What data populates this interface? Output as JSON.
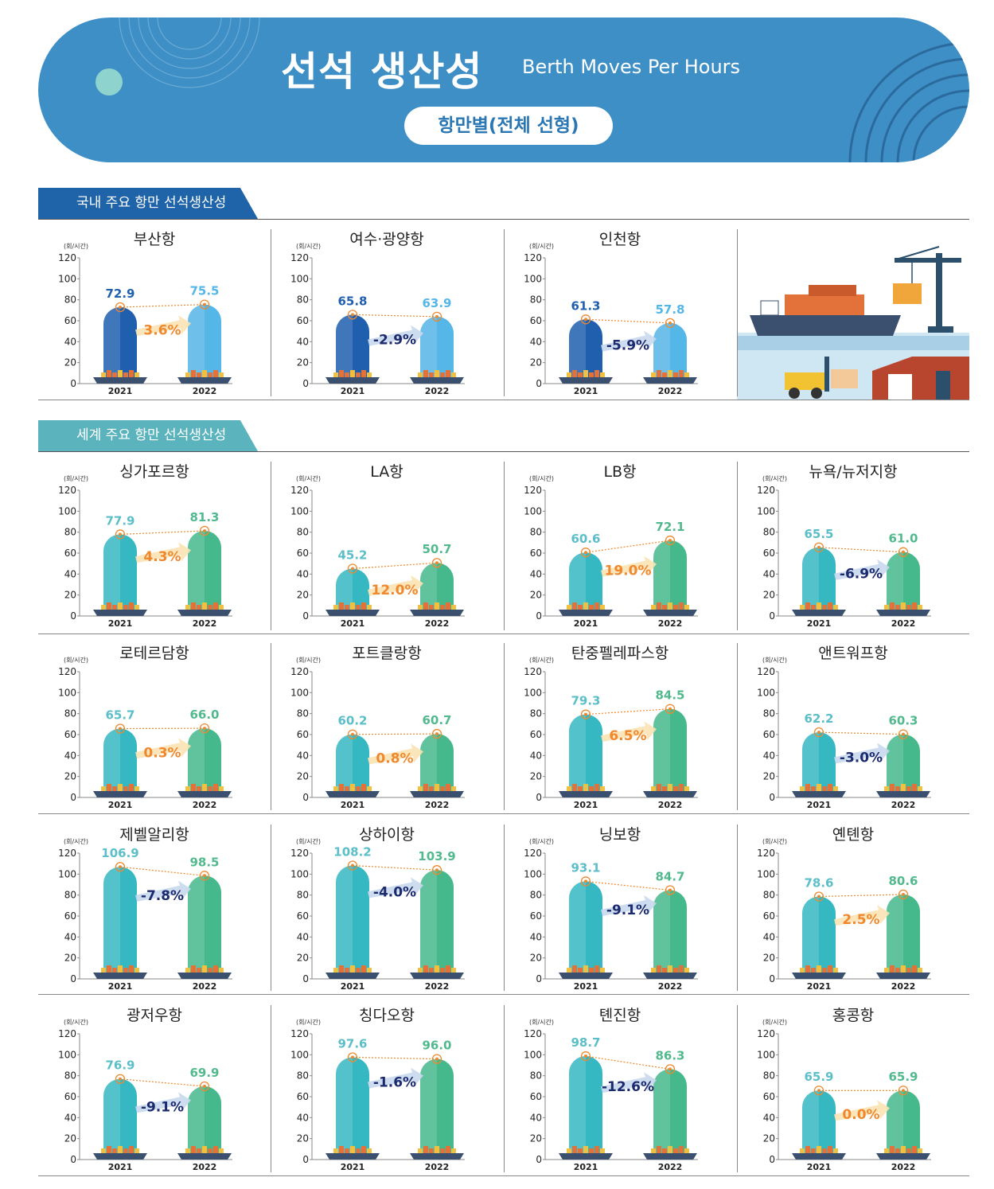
{
  "header": {
    "title": "선석 생산성",
    "subtitle": "Berth Moves Per Hours",
    "badge": "항만별(전체 선형)"
  },
  "sections": {
    "domestic": "국내 주요 항만 선석생산성",
    "global": "세계 주요 항만 선석생산성"
  },
  "colors": {
    "banner": "#3e8fc6",
    "domestic_tab": "#1f64a8",
    "global_tab": "#5bb4bd",
    "domestic_2021": "#1f5fae",
    "domestic_2022": "#55b6e8",
    "global_2021": "#36b8c2",
    "global_2022": "#46b98c",
    "increase": "#f0882d",
    "decrease": "#1c2a6e"
  },
  "unit": "(회/시간)",
  "chart_data": [
    {
      "type": "bar",
      "group": "domestic",
      "title": "부산항",
      "categories": [
        "2021",
        "2022"
      ],
      "values": [
        72.9,
        75.5
      ],
      "change": "3.6%",
      "ylim": [
        0,
        120
      ],
      "yticks": [
        0,
        20,
        40,
        60,
        80,
        100,
        120
      ]
    },
    {
      "type": "bar",
      "group": "domestic",
      "title": "여수·광양항",
      "categories": [
        "2021",
        "2022"
      ],
      "values": [
        65.8,
        63.9
      ],
      "change": "-2.9%",
      "ylim": [
        0,
        120
      ],
      "yticks": [
        0,
        20,
        40,
        60,
        80,
        100,
        120
      ]
    },
    {
      "type": "bar",
      "group": "domestic",
      "title": "인천항",
      "categories": [
        "2021",
        "2022"
      ],
      "values": [
        61.3,
        57.8
      ],
      "change": "-5.9%",
      "ylim": [
        0,
        120
      ],
      "yticks": [
        0,
        20,
        40,
        60,
        80,
        100,
        120
      ]
    },
    {
      "type": "bar",
      "group": "global",
      "title": "싱가포르항",
      "categories": [
        "2021",
        "2022"
      ],
      "values": [
        77.9,
        81.3
      ],
      "change": "4.3%",
      "ylim": [
        0,
        120
      ],
      "yticks": [
        0,
        20,
        40,
        60,
        80,
        100,
        120
      ]
    },
    {
      "type": "bar",
      "group": "global",
      "title": "LA항",
      "categories": [
        "2021",
        "2022"
      ],
      "values": [
        45.2,
        50.7
      ],
      "change": "12.0%",
      "ylim": [
        0,
        120
      ],
      "yticks": [
        0,
        20,
        40,
        60,
        80,
        100,
        120
      ]
    },
    {
      "type": "bar",
      "group": "global",
      "title": "LB항",
      "categories": [
        "2021",
        "2022"
      ],
      "values": [
        60.6,
        72.1
      ],
      "change": "19.0%",
      "ylim": [
        0,
        120
      ],
      "yticks": [
        0,
        20,
        40,
        60,
        80,
        100,
        120
      ]
    },
    {
      "type": "bar",
      "group": "global",
      "title": "뉴욕/뉴저지항",
      "categories": [
        "2021",
        "2022"
      ],
      "values": [
        65.5,
        61.0
      ],
      "change": "-6.9%",
      "ylim": [
        0,
        120
      ],
      "yticks": [
        0,
        20,
        40,
        60,
        80,
        100,
        120
      ]
    },
    {
      "type": "bar",
      "group": "global",
      "title": "로테르담항",
      "categories": [
        "2021",
        "2022"
      ],
      "values": [
        65.7,
        66.0
      ],
      "change": "0.3%",
      "ylim": [
        0,
        120
      ],
      "yticks": [
        0,
        20,
        40,
        60,
        80,
        100,
        120
      ]
    },
    {
      "type": "bar",
      "group": "global",
      "title": "포트클랑항",
      "categories": [
        "2021",
        "2022"
      ],
      "values": [
        60.2,
        60.7
      ],
      "change": "0.8%",
      "ylim": [
        0,
        120
      ],
      "yticks": [
        0,
        20,
        40,
        60,
        80,
        100,
        120
      ]
    },
    {
      "type": "bar",
      "group": "global",
      "title": "탄중펠레파스항",
      "categories": [
        "2021",
        "2022"
      ],
      "values": [
        79.3,
        84.5
      ],
      "change": "6.5%",
      "ylim": [
        0,
        120
      ],
      "yticks": [
        0,
        20,
        40,
        60,
        80,
        100,
        120
      ]
    },
    {
      "type": "bar",
      "group": "global",
      "title": "앤트워프항",
      "categories": [
        "2021",
        "2022"
      ],
      "values": [
        62.2,
        60.3
      ],
      "change": "-3.0%",
      "ylim": [
        0,
        120
      ],
      "yticks": [
        0,
        20,
        40,
        60,
        80,
        100,
        120
      ]
    },
    {
      "type": "bar",
      "group": "global",
      "title": "제벨알리항",
      "categories": [
        "2021",
        "2022"
      ],
      "values": [
        106.9,
        98.5
      ],
      "change": "-7.8%",
      "ylim": [
        0,
        120
      ],
      "yticks": [
        0,
        20,
        40,
        60,
        80,
        100,
        120
      ]
    },
    {
      "type": "bar",
      "group": "global",
      "title": "상하이항",
      "categories": [
        "2021",
        "2022"
      ],
      "values": [
        108.2,
        103.9
      ],
      "change": "-4.0%",
      "ylim": [
        0,
        120
      ],
      "yticks": [
        0,
        20,
        40,
        60,
        80,
        100,
        120
      ]
    },
    {
      "type": "bar",
      "group": "global",
      "title": "닝보항",
      "categories": [
        "2021",
        "2022"
      ],
      "values": [
        93.1,
        84.7
      ],
      "change": "-9.1%",
      "ylim": [
        0,
        120
      ],
      "yticks": [
        0,
        20,
        40,
        60,
        80,
        100,
        120
      ]
    },
    {
      "type": "bar",
      "group": "global",
      "title": "옌톈항",
      "categories": [
        "2021",
        "2022"
      ],
      "values": [
        78.6,
        80.6
      ],
      "change": "2.5%",
      "ylim": [
        0,
        120
      ],
      "yticks": [
        0,
        20,
        40,
        60,
        80,
        100,
        120
      ]
    },
    {
      "type": "bar",
      "group": "global",
      "title": "광저우항",
      "categories": [
        "2021",
        "2022"
      ],
      "values": [
        76.9,
        69.9
      ],
      "change": "-9.1%",
      "ylim": [
        0,
        120
      ],
      "yticks": [
        0,
        20,
        40,
        60,
        80,
        100,
        120
      ]
    },
    {
      "type": "bar",
      "group": "global",
      "title": "칭다오항",
      "categories": [
        "2021",
        "2022"
      ],
      "values": [
        97.6,
        96.0
      ],
      "change": "-1.6%",
      "ylim": [
        0,
        120
      ],
      "yticks": [
        0,
        20,
        40,
        60,
        80,
        100,
        120
      ]
    },
    {
      "type": "bar",
      "group": "global",
      "title": "톈진항",
      "categories": [
        "2021",
        "2022"
      ],
      "values": [
        98.7,
        86.3
      ],
      "change": "-12.6%",
      "ylim": [
        0,
        120
      ],
      "yticks": [
        0,
        20,
        40,
        60,
        80,
        100,
        120
      ]
    },
    {
      "type": "bar",
      "group": "global",
      "title": "홍콩항",
      "categories": [
        "2021",
        "2022"
      ],
      "values": [
        65.9,
        65.9
      ],
      "change": "0.0%",
      "ylim": [
        0,
        120
      ],
      "yticks": [
        0,
        20,
        40,
        60,
        80,
        100,
        120
      ]
    }
  ]
}
